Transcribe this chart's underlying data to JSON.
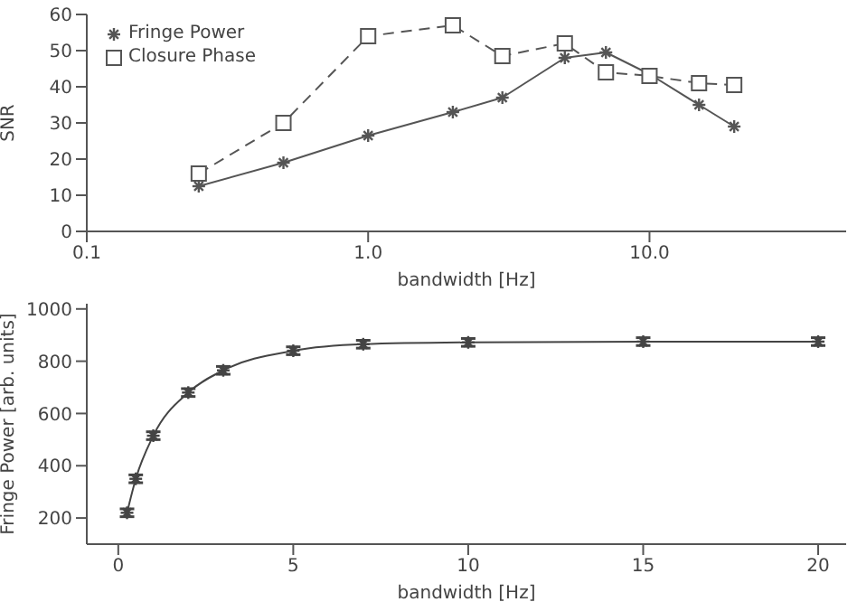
{
  "chart_data": [
    {
      "type": "line",
      "xlabel": "bandwidth [Hz]",
      "ylabel": "SNR",
      "log": "x",
      "xlim": [
        0.1,
        50
      ],
      "xticks": [
        0.1,
        {
          "value": 1,
          "label": "1.0"
        },
        {
          "value": 10,
          "label": "10.0"
        }
      ],
      "ylim": [
        0,
        60
      ],
      "yticks": [
        0,
        10,
        20,
        30,
        40,
        50,
        60
      ],
      "legend": "top left",
      "x": [
        0.25,
        0.5,
        1,
        2,
        3,
        5,
        7,
        10,
        15,
        20
      ],
      "series": [
        {
          "name": "Fringe Power",
          "color": "#555555",
          "marker": "cross",
          "line_style": "solid",
          "values": [
            12.5,
            19,
            26.5,
            33,
            37,
            48,
            49.5,
            43.5,
            35,
            29
          ]
        },
        {
          "name": "Closure Phase",
          "color": "#555555",
          "marker": "square",
          "line_style": "dashed",
          "values": [
            16,
            30,
            54,
            57,
            48.5,
            52,
            44,
            43,
            41,
            40.5
          ]
        }
      ]
    },
    {
      "type": "line",
      "xlabel": "bandwidth [Hz]",
      "ylabel": "Fringe Power [arb. units]",
      "xlim": [
        -0.9,
        20.8
      ],
      "xticks": [
        0,
        5,
        10,
        15,
        20
      ],
      "ylim": [
        100,
        1020
      ],
      "yticks": [
        200,
        400,
        600,
        800,
        1000
      ],
      "legend": false,
      "x": [
        0.25,
        0.5,
        1,
        2,
        3,
        5,
        7,
        10,
        15,
        20
      ],
      "series": [
        {
          "color": "#444444",
          "marker": "cross",
          "line_style": "solid",
          "values": [
            220,
            350,
            515,
            680,
            765,
            840,
            865,
            872,
            875,
            875
          ],
          "errors": [
            15,
            15,
            15,
            15,
            15,
            15,
            15,
            15,
            15,
            15
          ]
        }
      ]
    }
  ]
}
